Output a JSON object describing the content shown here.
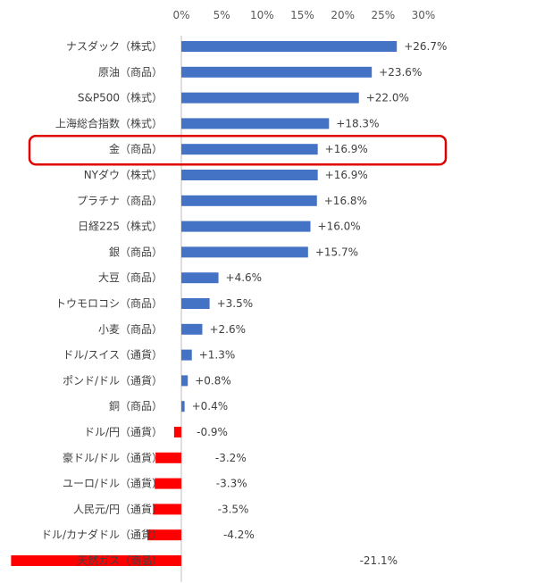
{
  "chart_data": {
    "type": "bar",
    "orientation": "horizontal",
    "categories": [
      "ナスダック（株式）",
      "原油（商品）",
      "S&P500（株式）",
      "上海総合指数（株式）",
      "金（商品）",
      "NYダウ（株式）",
      "プラチナ（商品）",
      "日経225（株式）",
      "銀（商品）",
      "大豆（商品）",
      "トウモロコシ（商品）",
      "小麦（商品）",
      "ドル/スイス（通貨）",
      "ポンド/ドル（通貨）",
      "銅（商品）",
      "ドル/円（通貨）",
      "豪ドル/ドル（通貨）",
      "ユーロ/ドル（通貨）",
      "人民元/円（通貨）",
      "ドル/カナダドル（通貨）",
      "天然ガス（商品）"
    ],
    "values": [
      26.7,
      23.6,
      22.0,
      18.3,
      16.9,
      16.9,
      16.8,
      16.0,
      15.7,
      4.6,
      3.5,
      2.6,
      1.3,
      0.8,
      0.4,
      -0.9,
      -3.2,
      -3.3,
      -3.5,
      -4.2,
      -21.1
    ],
    "data_labels": [
      "+26.7%",
      "+23.6%",
      "+22.0%",
      "+18.3%",
      "+16.9%",
      "+16.9%",
      "+16.8%",
      "+16.0%",
      "+15.7%",
      "+4.6%",
      "+3.5%",
      "+2.6%",
      "+1.3%",
      "+0.8%",
      "+0.4%",
      "-0.9%",
      "-3.2%",
      "-3.3%",
      "-3.5%",
      "-4.2%",
      "-21.1%"
    ],
    "xticks": [
      "0%",
      "5%",
      "10%",
      "15%",
      "20%",
      "25%",
      "30%"
    ],
    "xlim": [
      0,
      30
    ],
    "axis_position": "top",
    "highlighted_category": "金（商品）",
    "colors": {
      "positive": "#4472C4",
      "negative": "#FF0000",
      "highlight_box": "#E00000"
    },
    "grid": false,
    "legend": "none"
  }
}
